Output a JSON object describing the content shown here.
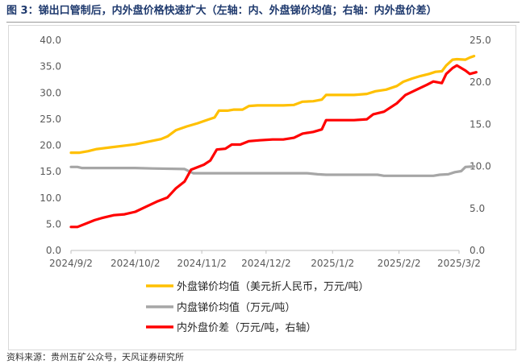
{
  "title": "图 3：锑出口管制后，内外盘价格快速扩大（左轴：内、外盘锑价均值；右轴：内外盘价差）",
  "source": "资料来源：贵州五矿公众号，天风证券研究所",
  "chart_data": {
    "type": "line",
    "x_ticks": [
      "2024/9/2",
      "2024/10/2",
      "2024/11/2",
      "2024/12/2",
      "2025/1/2",
      "2025/2/2",
      "2025/3/2"
    ],
    "y_left_ticks": [
      "0.0",
      "5.0",
      "10.0",
      "15.0",
      "20.0",
      "25.0",
      "30.0",
      "35.0",
      "40.0"
    ],
    "y_right_ticks": [
      "0.0",
      "5.0",
      "10.0",
      "15.0",
      "20.0",
      "25.0"
    ],
    "y_left_lim": [
      0,
      40
    ],
    "y_right_lim": [
      0,
      25
    ],
    "x_lim": [
      "2024-09-02",
      "2025-03-02"
    ],
    "grid": false,
    "legend_position": "bottom",
    "series": [
      {
        "name": "外盘锑价均值（美元折人民币，万元/吨）",
        "axis": "left",
        "color": "#ffc000",
        "points": [
          [
            "2024-09-02",
            18.6
          ],
          [
            "2024-09-06",
            18.6
          ],
          [
            "2024-09-10",
            18.9
          ],
          [
            "2024-09-14",
            19.3
          ],
          [
            "2024-09-20",
            19.6
          ],
          [
            "2024-09-26",
            19.9
          ],
          [
            "2024-10-02",
            20.2
          ],
          [
            "2024-10-08",
            20.7
          ],
          [
            "2024-10-14",
            21.2
          ],
          [
            "2024-10-17",
            21.7
          ],
          [
            "2024-10-21",
            22.9
          ],
          [
            "2024-10-26",
            23.6
          ],
          [
            "2024-10-31",
            24.2
          ],
          [
            "2024-11-05",
            24.9
          ],
          [
            "2024-11-08",
            25.3
          ],
          [
            "2024-11-10",
            26.6
          ],
          [
            "2024-11-14",
            26.6
          ],
          [
            "2024-11-17",
            26.8
          ],
          [
            "2024-11-21",
            26.8
          ],
          [
            "2024-11-24",
            27.5
          ],
          [
            "2024-11-28",
            27.6
          ],
          [
            "2024-12-05",
            27.6
          ],
          [
            "2024-12-10",
            27.6
          ],
          [
            "2024-12-15",
            27.7
          ],
          [
            "2024-12-19",
            28.3
          ],
          [
            "2024-12-24",
            28.4
          ],
          [
            "2024-12-28",
            28.7
          ],
          [
            "2024-12-30",
            29.6
          ],
          [
            "2025-01-05",
            29.6
          ],
          [
            "2025-01-12",
            29.6
          ],
          [
            "2025-01-18",
            29.8
          ],
          [
            "2025-01-22",
            30.3
          ],
          [
            "2025-01-27",
            30.6
          ],
          [
            "2025-02-01",
            31.3
          ],
          [
            "2025-02-04",
            32.1
          ],
          [
            "2025-02-08",
            32.7
          ],
          [
            "2025-02-12",
            33.2
          ],
          [
            "2025-02-16",
            33.6
          ],
          [
            "2025-02-19",
            34.0
          ],
          [
            "2025-02-22",
            34.1
          ],
          [
            "2025-02-24",
            35.2
          ],
          [
            "2025-02-27",
            36.3
          ],
          [
            "2025-03-01",
            36.4
          ],
          [
            "2025-03-05",
            36.3
          ],
          [
            "2025-03-07",
            36.7
          ],
          [
            "2025-03-09",
            37.0
          ]
        ]
      },
      {
        "name": "内盘锑价均值（万元/吨）",
        "axis": "left",
        "color": "#a6a6a6",
        "points": [
          [
            "2024-09-02",
            15.9
          ],
          [
            "2024-09-05",
            15.9
          ],
          [
            "2024-09-07",
            15.7
          ],
          [
            "2024-09-20",
            15.7
          ],
          [
            "2024-10-02",
            15.7
          ],
          [
            "2024-10-10",
            15.6
          ],
          [
            "2024-10-25",
            15.5
          ],
          [
            "2024-10-29",
            14.7
          ],
          [
            "2024-11-10",
            14.7
          ],
          [
            "2024-11-25",
            14.7
          ],
          [
            "2024-12-10",
            14.7
          ],
          [
            "2024-12-21",
            14.7
          ],
          [
            "2024-12-26",
            14.5
          ],
          [
            "2024-12-30",
            14.4
          ],
          [
            "2025-01-10",
            14.4
          ],
          [
            "2025-01-23",
            14.4
          ],
          [
            "2025-01-26",
            14.2
          ],
          [
            "2025-02-05",
            14.2
          ],
          [
            "2025-02-12",
            14.2
          ],
          [
            "2025-02-18",
            14.2
          ],
          [
            "2025-02-21",
            14.4
          ],
          [
            "2025-02-25",
            14.5
          ],
          [
            "2025-02-28",
            14.9
          ],
          [
            "2025-03-03",
            15.1
          ],
          [
            "2025-03-05",
            15.9
          ],
          [
            "2025-03-09",
            16.0
          ]
        ]
      },
      {
        "name": "内外盘价差（万元/吨，右轴）",
        "axis": "right",
        "color": "#ff0000",
        "points": [
          [
            "2024-09-02",
            2.8
          ],
          [
            "2024-09-05",
            2.8
          ],
          [
            "2024-09-09",
            3.2
          ],
          [
            "2024-09-13",
            3.6
          ],
          [
            "2024-09-17",
            3.9
          ],
          [
            "2024-09-22",
            4.2
          ],
          [
            "2024-09-27",
            4.3
          ],
          [
            "2024-10-02",
            4.6
          ],
          [
            "2024-10-07",
            5.2
          ],
          [
            "2024-10-12",
            5.8
          ],
          [
            "2024-10-17",
            6.3
          ],
          [
            "2024-10-21",
            7.4
          ],
          [
            "2024-10-25",
            8.2
          ],
          [
            "2024-10-28",
            9.6
          ],
          [
            "2024-11-03",
            10.2
          ],
          [
            "2024-11-06",
            10.7
          ],
          [
            "2024-11-09",
            12.0
          ],
          [
            "2024-11-13",
            12.1
          ],
          [
            "2024-11-16",
            12.6
          ],
          [
            "2024-11-20",
            12.6
          ],
          [
            "2024-11-24",
            13.0
          ],
          [
            "2024-11-29",
            13.1
          ],
          [
            "2024-12-05",
            13.2
          ],
          [
            "2024-12-10",
            13.2
          ],
          [
            "2024-12-15",
            13.4
          ],
          [
            "2024-12-19",
            13.9
          ],
          [
            "2024-12-24",
            14.1
          ],
          [
            "2024-12-28",
            14.4
          ],
          [
            "2024-12-30",
            15.5
          ],
          [
            "2025-01-06",
            15.5
          ],
          [
            "2025-01-12",
            15.5
          ],
          [
            "2025-01-18",
            15.6
          ],
          [
            "2025-01-21",
            16.2
          ],
          [
            "2025-01-26",
            16.5
          ],
          [
            "2025-02-01",
            17.5
          ],
          [
            "2025-02-05",
            18.5
          ],
          [
            "2025-02-10",
            19.1
          ],
          [
            "2025-02-15",
            19.7
          ],
          [
            "2025-02-18",
            20.1
          ],
          [
            "2025-02-22",
            19.9
          ],
          [
            "2025-02-24",
            21.0
          ],
          [
            "2025-02-27",
            21.7
          ],
          [
            "2025-03-01",
            22.0
          ],
          [
            "2025-03-05",
            21.4
          ],
          [
            "2025-03-07",
            21.0
          ],
          [
            "2025-03-10",
            21.2
          ]
        ]
      }
    ]
  }
}
